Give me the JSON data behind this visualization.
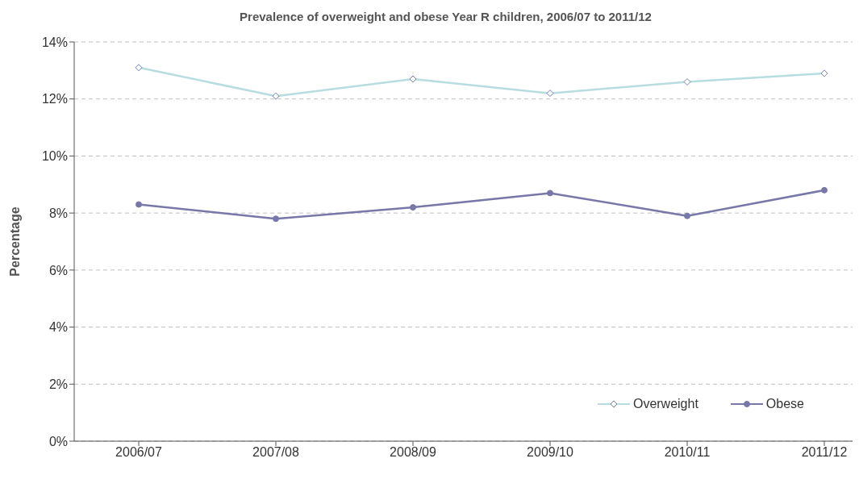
{
  "chart_data": {
    "type": "line",
    "title": "Prevalence of overweight and obese Year R children, 2006/07 to 2011/12",
    "ylabel": "Percentage",
    "categories": [
      "2006/07",
      "2007/08",
      "2008/09",
      "2009/10",
      "2010/11",
      "2011/12"
    ],
    "series": [
      {
        "name": "Overweight",
        "color": "#b7dde0",
        "marker": "diamond",
        "values": [
          13.1,
          12.1,
          12.7,
          12.2,
          12.6,
          12.9
        ]
      },
      {
        "name": "Obese",
        "color": "#7878a8",
        "marker": "circle",
        "values": [
          8.3,
          7.8,
          8.2,
          8.7,
          7.9,
          8.8
        ]
      }
    ],
    "ylim": [
      0,
      14
    ],
    "yticks": [
      {
        "value": 0,
        "label": "0%"
      },
      {
        "value": 2,
        "label": "2%"
      },
      {
        "value": 4,
        "label": "4%"
      },
      {
        "value": 6,
        "label": "6%"
      },
      {
        "value": 8,
        "label": "8%"
      },
      {
        "value": 10,
        "label": "10%"
      },
      {
        "value": 12,
        "label": "12%"
      },
      {
        "value": 14,
        "label": "14%"
      }
    ],
    "grid": "y",
    "legend": "bottom right"
  }
}
